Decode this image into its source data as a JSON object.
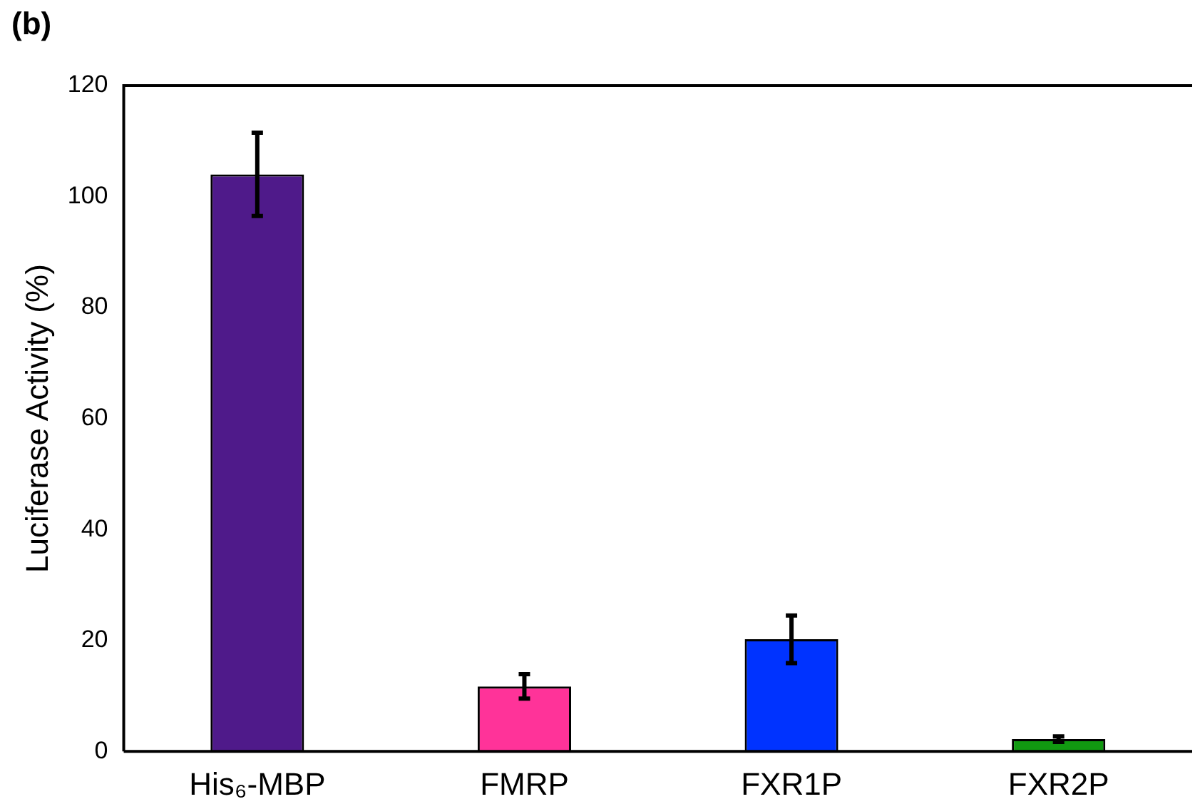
{
  "chart_data": {
    "type": "bar",
    "title": "(b)",
    "ylabel": "Luciferase Activity (%)",
    "categories": [
      "His₆-MBP",
      "FMRP",
      "FXR1P",
      "FXR2P"
    ],
    "values": [
      104,
      11.7,
      20.2,
      2.2
    ],
    "errors": [
      7.5,
      2.2,
      4.3,
      0.5
    ],
    "colors": [
      "#4f1a8a",
      "#ff3399",
      "#0033ff",
      "#119911"
    ],
    "ylim": [
      0,
      120
    ],
    "yticks": [
      0,
      20,
      40,
      60,
      80,
      100,
      120
    ],
    "grid": false,
    "legend": false
  }
}
